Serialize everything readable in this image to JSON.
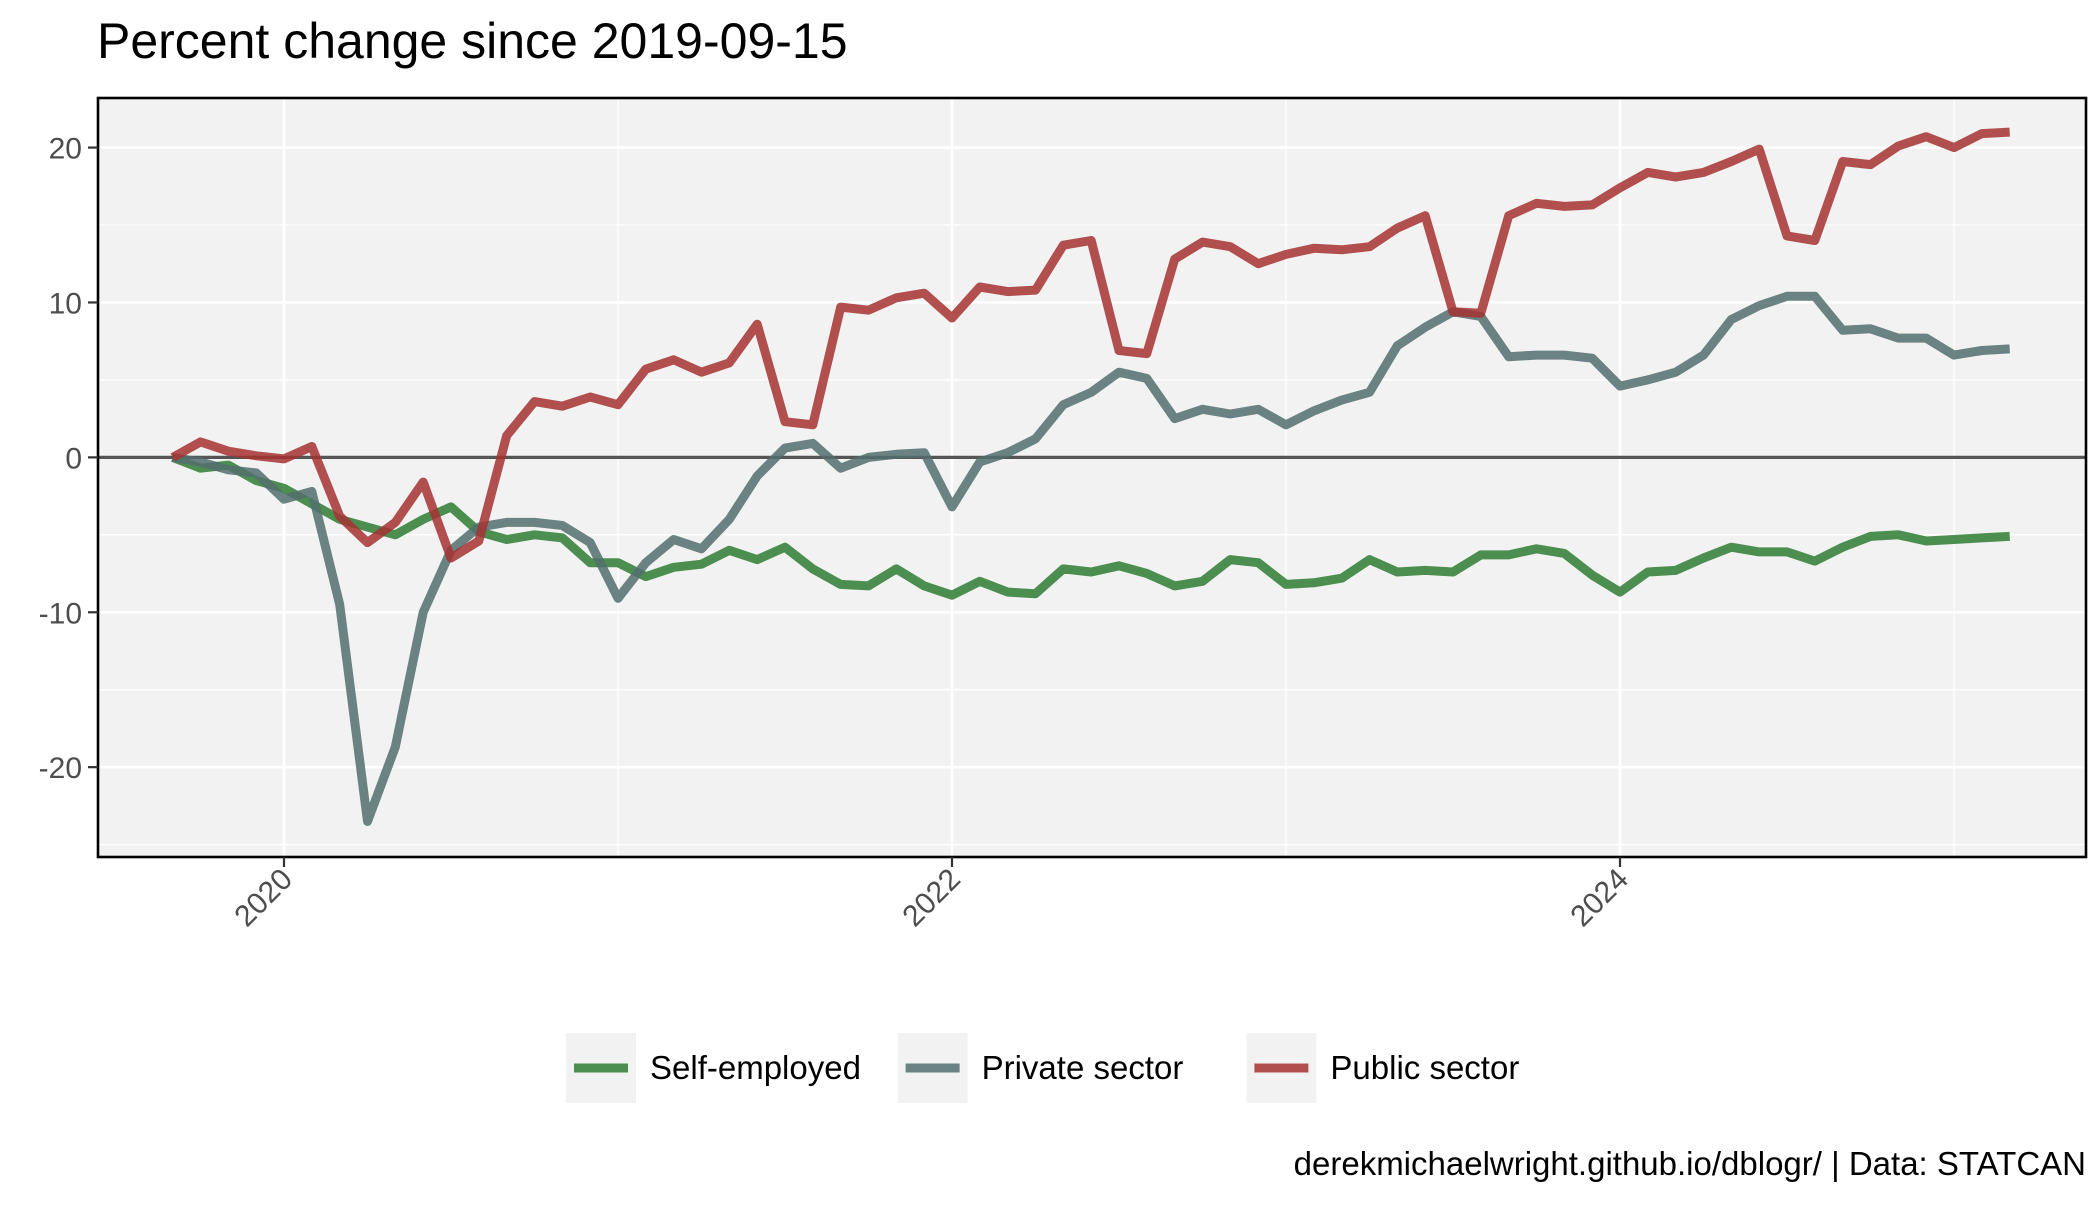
{
  "chart_data": {
    "type": "line",
    "title": "Percent change since 2019-09-15",
    "xlabel": "",
    "ylabel": "",
    "caption": "derekmichaelwright.github.io/dblogr/ | Data: STATCAN",
    "x_ticks": [
      "2020",
      "2022",
      "2024"
    ],
    "y_ticks": [
      "20",
      "10",
      "0",
      "-10",
      "-20"
    ],
    "ylim": [
      -25.8,
      23.2
    ],
    "grid": true,
    "reference_line": 0,
    "legend_position": "bottom",
    "x_dates": [
      "2019-09",
      "2019-10",
      "2019-11",
      "2019-12",
      "2020-01",
      "2020-02",
      "2020-03",
      "2020-04",
      "2020-05",
      "2020-06",
      "2020-07",
      "2020-08",
      "2020-09",
      "2020-10",
      "2020-11",
      "2020-12",
      "2021-01",
      "2021-02",
      "2021-03",
      "2021-04",
      "2021-05",
      "2021-06",
      "2021-07",
      "2021-08",
      "2021-09",
      "2021-10",
      "2021-11",
      "2021-12",
      "2022-01",
      "2022-02",
      "2022-03",
      "2022-04",
      "2022-05",
      "2022-06",
      "2022-07",
      "2022-08",
      "2022-09",
      "2022-10",
      "2022-11",
      "2022-12",
      "2023-01",
      "2023-02",
      "2023-03",
      "2023-04",
      "2023-05",
      "2023-06",
      "2023-07",
      "2023-08",
      "2023-09",
      "2023-10",
      "2023-11",
      "2023-12",
      "2024-01",
      "2024-02",
      "2024-03",
      "2024-04",
      "2024-05",
      "2024-06",
      "2024-07",
      "2024-08",
      "2024-09",
      "2024-10",
      "2024-11",
      "2024-12",
      "2025-01",
      "2025-02",
      "2025-03"
    ],
    "series": [
      {
        "name": "Self-employed",
        "color": "#2e7d32",
        "values": [
          0,
          -0.7,
          -0.5,
          -1.5,
          -2,
          -3,
          -4,
          -4.5,
          -5,
          -4,
          -3.2,
          -4.8,
          -5.3,
          -5,
          -5.2,
          -6.8,
          -6.8,
          -7.7,
          -7.1,
          -6.9,
          -6,
          -6.6,
          -5.8,
          -7.2,
          -8.2,
          -8.3,
          -7.2,
          -8.3,
          -8.9,
          -8.0,
          -8.7,
          -8.8,
          -7.2,
          -7.4,
          -7.0,
          -7.5,
          -8.3,
          -8.0,
          -6.6,
          -6.8,
          -8.2,
          -8.1,
          -7.8,
          -6.6,
          -7.4,
          -7.3,
          -7.4,
          -6.3,
          -6.3,
          -5.9,
          -6.2,
          -7.6,
          -8.7,
          -7.4,
          -7.3,
          -6.5,
          -5.8,
          -6.1,
          -6.1,
          -6.7,
          -5.8,
          -5.1,
          -5.0,
          -5.4,
          -5.3,
          -5.2,
          -5.1
        ]
      },
      {
        "name": "Private sector",
        "color": "#546e6e",
        "values": [
          0,
          -0.3,
          -0.8,
          -1.0,
          -2.7,
          -2.2,
          -9.5,
          -23.5,
          -18.7,
          -10,
          -6.0,
          -4.5,
          -4.2,
          -4.2,
          -4.4,
          -5.5,
          -9.1,
          -6.8,
          -5.3,
          -5.9,
          -4.0,
          -1.2,
          0.6,
          0.9,
          -0.7,
          0,
          0.2,
          0.3,
          -3.2,
          -0.3,
          0.3,
          1.2,
          3.4,
          4.2,
          5.5,
          5.1,
          2.5,
          3.1,
          2.8,
          3.1,
          2.1,
          3.0,
          3.7,
          4.2,
          7.2,
          8.4,
          9.4,
          9.1,
          6.5,
          6.6,
          6.6,
          6.4,
          4.6,
          5.0,
          5.5,
          6.6,
          8.9,
          9.8,
          10.4,
          10.4,
          8.2,
          8.3,
          7.7,
          7.7,
          6.6,
          6.9,
          7.0
        ]
      },
      {
        "name": "Public sector",
        "color": "#a63232",
        "values": [
          0,
          1.0,
          0.4,
          0.1,
          -0.1,
          0.7,
          -3.8,
          -5.5,
          -4.2,
          -1.6,
          -6.5,
          -5.4,
          1.4,
          3.6,
          3.3,
          3.9,
          3.4,
          5.7,
          6.3,
          5.5,
          6.1,
          8.6,
          2.3,
          2.1,
          9.7,
          9.5,
          10.3,
          10.6,
          9.0,
          11.0,
          10.7,
          10.8,
          13.7,
          14.0,
          6.9,
          6.7,
          12.8,
          13.9,
          13.6,
          12.5,
          13.1,
          13.5,
          13.4,
          13.6,
          14.8,
          15.6,
          9.4,
          9.3,
          15.6,
          16.4,
          16.2,
          16.3,
          17.4,
          18.4,
          18.1,
          18.4,
          19.1,
          19.9,
          14.3,
          14.0,
          19.1,
          18.9,
          20.1,
          20.7,
          20.0,
          20.9,
          21.0
        ]
      }
    ]
  }
}
